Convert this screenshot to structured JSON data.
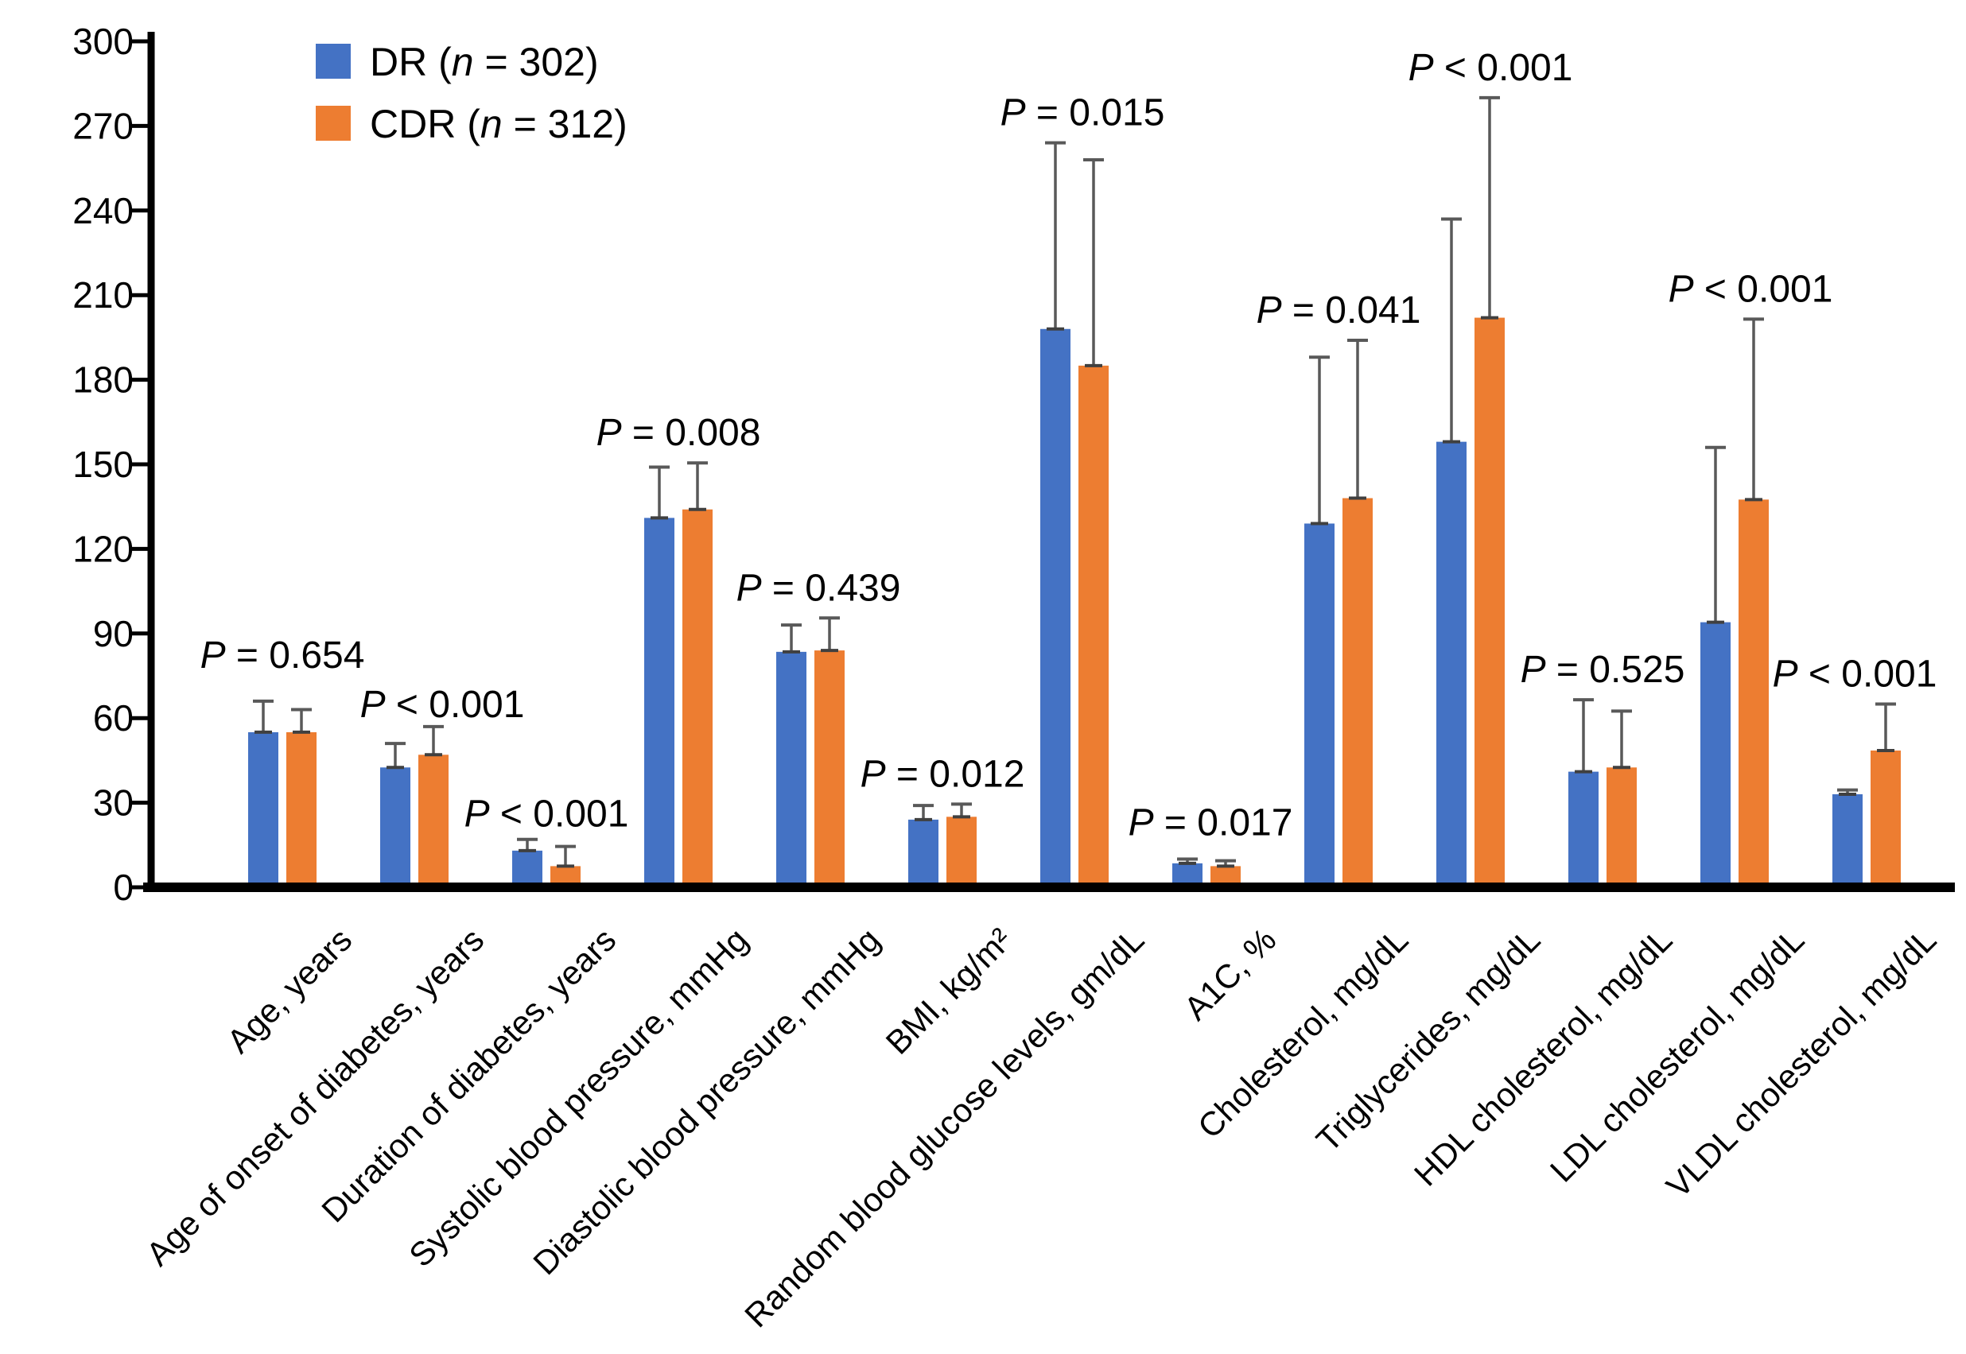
{
  "chart_data": {
    "type": "bar",
    "title": "",
    "categories": [
      "Age, years",
      "Age of onset of diabetes, years",
      "Duration of diabetes, years",
      "Systolic blood pressure, mmHg",
      "Diastolic blood pressure, mmHg",
      "BMI, kg/m²",
      "Random blood glucose levels, gm/dL",
      "A1C, %",
      "Cholesterol, mg/dL",
      "Triglycerides, mg/dL",
      "HDL cholesterol, mg/dL",
      "LDL cholesterol, mg/dL",
      "VLDL cholesterol, mg/dL"
    ],
    "series": [
      {
        "name": "DR (n = 302)",
        "color": "#4472C4",
        "values": [
          55,
          42.5,
          13,
          131,
          83.5,
          24,
          198,
          8.5,
          129,
          158,
          41,
          94,
          33
        ],
        "error_top": [
          66,
          51,
          17,
          149,
          93,
          29,
          264,
          10,
          188,
          237,
          66.5,
          156,
          34.5
        ]
      },
      {
        "name": "CDR (n = 312)",
        "color": "#ED7D31",
        "values": [
          55,
          47,
          7.5,
          134,
          84,
          25,
          185,
          7.5,
          138,
          202,
          42.5,
          137.5,
          48.5
        ],
        "error_top": [
          63,
          57,
          14.5,
          150.5,
          95.5,
          29.5,
          258,
          9.4,
          194,
          280,
          62.5,
          201.5,
          65
        ]
      }
    ],
    "p_values": [
      "P = 0.654",
      "P < 0.001",
      "P < 0.001",
      "P = 0.008",
      "P = 0.439",
      "P = 0.012",
      "P = 0.015",
      "P = 0.017",
      "P = 0.041",
      "P < 0.001",
      "P = 0.525",
      "P < 0.001",
      "P < 0.001"
    ],
    "legend": [
      {
        "label": "DR (n = 302)",
        "color": "#4472C4"
      },
      {
        "label": "CDR (n = 312)",
        "color": "#ED7D31"
      }
    ],
    "legend_position": "top-left",
    "xlabel": "",
    "ylabel": "",
    "ylim": [
      0,
      300
    ],
    "ytick_step": 30,
    "yticks": [
      0,
      30,
      60,
      90,
      120,
      150,
      180,
      210,
      240,
      270,
      300
    ],
    "grid": false,
    "axis_color": "#000000",
    "error_bar_color": "#595959",
    "text_color": "#000000",
    "background_color": "#FFFFFF"
  }
}
